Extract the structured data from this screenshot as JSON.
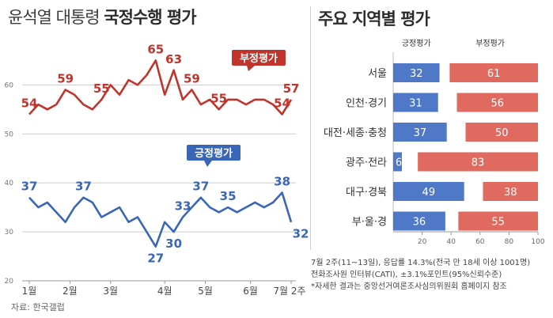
{
  "left_title_pre": "윤석열 대통령",
  "left_title_bold": "국정수행 평가",
  "right_title": "주요 지역별 평가",
  "source": "자료: 한국갤럽",
  "footnote": [
    "7월 2주(11~13일), 응답률 14.3%(전국 만 18세 이상 1001명)",
    "전화조사원 인터뷰(CATI), ±3.1%포인트(95%신뢰수준)",
    "*자세한 결과는 중앙선거여론조사심의위원회 홈페이지 참조"
  ],
  "colors": {
    "negative": "#c0342b",
    "positive": "#3a66b8",
    "neg_bar": "#e06a5f",
    "pos_bar": "#4f78c6",
    "grid": "#cccccc"
  },
  "chart_data": [
    {
      "type": "line",
      "yticks": [
        20,
        30,
        40,
        50,
        60
      ],
      "ylim": [
        20,
        67
      ],
      "grid": true,
      "month_labels": [
        "1월",
        "2월",
        "3월",
        "4월",
        "5월",
        "6월",
        "7월 2주"
      ],
      "month_positions": [
        0,
        4.5,
        9,
        15,
        19.5,
        24.5,
        29
      ],
      "series": [
        {
          "name": "부정평가",
          "values": [
            54,
            56,
            55,
            56,
            59,
            58,
            56,
            55,
            57,
            60,
            58,
            61,
            60,
            62,
            65,
            58,
            63,
            57,
            59,
            56,
            57,
            55,
            57,
            57,
            56,
            57,
            57,
            56,
            54,
            57
          ],
          "labels": [
            {
              "i": 0,
              "v": "54"
            },
            {
              "i": 4,
              "v": "59"
            },
            {
              "i": 8,
              "v": "55"
            },
            {
              "i": 14,
              "v": "65"
            },
            {
              "i": 16,
              "v": "63"
            },
            {
              "i": 18,
              "v": "59"
            },
            {
              "i": 21,
              "v": "55"
            },
            {
              "i": 28,
              "v": "54"
            },
            {
              "i": 29,
              "v": "57"
            }
          ]
        },
        {
          "name": "긍정평가",
          "values": [
            37,
            35,
            36,
            34,
            32,
            35,
            37,
            36,
            33,
            34,
            35,
            32,
            33,
            30,
            27,
            32,
            30,
            33,
            35,
            37,
            35,
            34,
            35,
            34,
            35,
            36,
            35,
            36,
            38,
            32
          ],
          "labels": [
            {
              "i": 0,
              "v": "37"
            },
            {
              "i": 6,
              "v": "37"
            },
            {
              "i": 14,
              "v": "27"
            },
            {
              "i": 16,
              "v": "30"
            },
            {
              "i": 17,
              "v": "33"
            },
            {
              "i": 19,
              "v": "37"
            },
            {
              "i": 22,
              "v": "35"
            },
            {
              "i": 28,
              "v": "38"
            },
            {
              "i": 29,
              "v": "32"
            }
          ]
        }
      ]
    },
    {
      "type": "bar",
      "stacked": true,
      "orientation": "horizontal",
      "categories": [
        "서울",
        "인천·경기",
        "대전·세종·충청",
        "광주·전라",
        "대구·경북",
        "부·울·경"
      ],
      "legend": [
        "긍정평가",
        "부정평가"
      ],
      "series": [
        {
          "name": "긍정평가",
          "values": [
            32,
            31,
            37,
            6,
            49,
            36
          ]
        },
        {
          "name": "부정평가",
          "values": [
            61,
            56,
            50,
            83,
            38,
            55
          ]
        }
      ],
      "xticks": [
        "20",
        "40",
        "60",
        "80",
        "100"
      ],
      "xlim": [
        0,
        100
      ]
    }
  ]
}
